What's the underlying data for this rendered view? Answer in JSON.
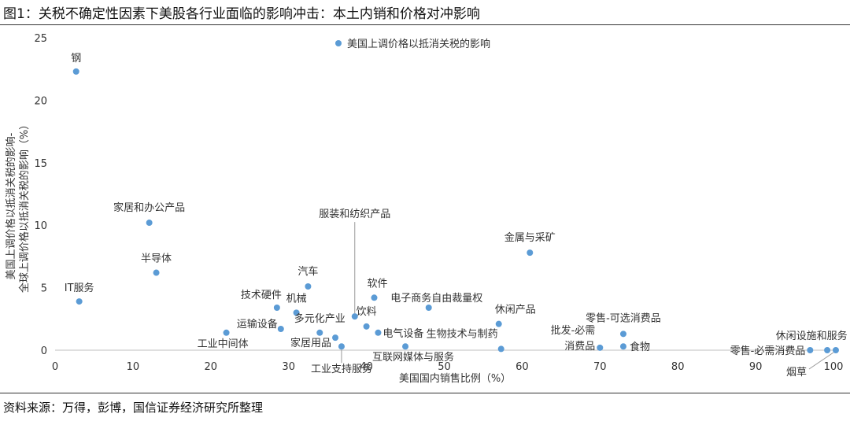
{
  "figure": {
    "title": "图1：关税不确定性因素下美股各行业面临的影响冲击：本土内销和价格对冲影响",
    "source": "资料来源：万得，彭博，国信证券经济研究所整理"
  },
  "colors": {
    "point": "#5b9bd5",
    "axis": "#bfbfbf",
    "text": "#333333",
    "leader": "#999999"
  },
  "chart_data": {
    "type": "scatter",
    "xlabel": "美国国内销售比例（%）",
    "ylabel_lines": [
      "美国上调价格以抵消关税的影响-",
      "全球上调价格以抵消关税的影响（%）"
    ],
    "xlim": [
      0,
      100
    ],
    "ylim": [
      0,
      25
    ],
    "xticks": [
      0,
      10,
      20,
      30,
      40,
      50,
      60,
      70,
      80,
      90,
      100
    ],
    "yticks": [
      0,
      5,
      10,
      15,
      20,
      25
    ],
    "grid": false,
    "legend": {
      "position": "top-center",
      "label": "美国上调价格以抵消关税的影响"
    },
    "points": [
      {
        "label": "钢",
        "x": 2.7,
        "y": 22.3
      },
      {
        "label": "家居和办公产品",
        "x": 12.1,
        "y": 10.2
      },
      {
        "label": "半导体",
        "x": 13.0,
        "y": 6.2
      },
      {
        "label": "IT服务",
        "x": 3.1,
        "y": 3.9
      },
      {
        "label": "运输设备",
        "x": 29.0,
        "y": 1.7
      },
      {
        "label": "技术硬件",
        "x": 28.5,
        "y": 3.4
      },
      {
        "label": "工业中间体",
        "x": 22.0,
        "y": 1.4
      },
      {
        "label": "汽车",
        "x": 32.5,
        "y": 5.1
      },
      {
        "label": "机械",
        "x": 31.0,
        "y": 3.0
      },
      {
        "label": "多元化产业",
        "x": 34.0,
        "y": 1.4
      },
      {
        "label": "家居用品",
        "x": 36.0,
        "y": 1.0
      },
      {
        "label": "工业支持服务",
        "x": 36.8,
        "y": 0.3
      },
      {
        "label": "服装和纺织产品",
        "x": 38.5,
        "y": 2.7
      },
      {
        "label": "饮料",
        "x": 40.0,
        "y": 1.9
      },
      {
        "label": "软件",
        "x": 41.0,
        "y": 4.2
      },
      {
        "label": "电气设备",
        "x": 41.5,
        "y": 1.4
      },
      {
        "label": "互联网媒体与服务",
        "x": 45.0,
        "y": 0.3
      },
      {
        "label": "电子商务自由裁量权",
        "x": 48.0,
        "y": 3.4
      },
      {
        "label": "金属与采矿",
        "x": 61.0,
        "y": 7.8
      },
      {
        "label": "休闲产品",
        "x": 57.0,
        "y": 2.1
      },
      {
        "label": "生物技术与制药",
        "x": 57.3,
        "y": 0.1
      },
      {
        "label": "批发-必需消费品",
        "x": 70.0,
        "y": 0.2
      },
      {
        "label": "零售-可选消费品",
        "x": 73.0,
        "y": 1.3
      },
      {
        "label": "食物",
        "x": 73.0,
        "y": 0.3
      },
      {
        "label": "零售-必需消费品",
        "x": 97.0,
        "y": 0.0
      },
      {
        "label": "休闲设施和服务",
        "x": 99.2,
        "y": 0.0
      },
      {
        "label": "烟草",
        "x": 100.3,
        "y": 0.0
      }
    ]
  }
}
